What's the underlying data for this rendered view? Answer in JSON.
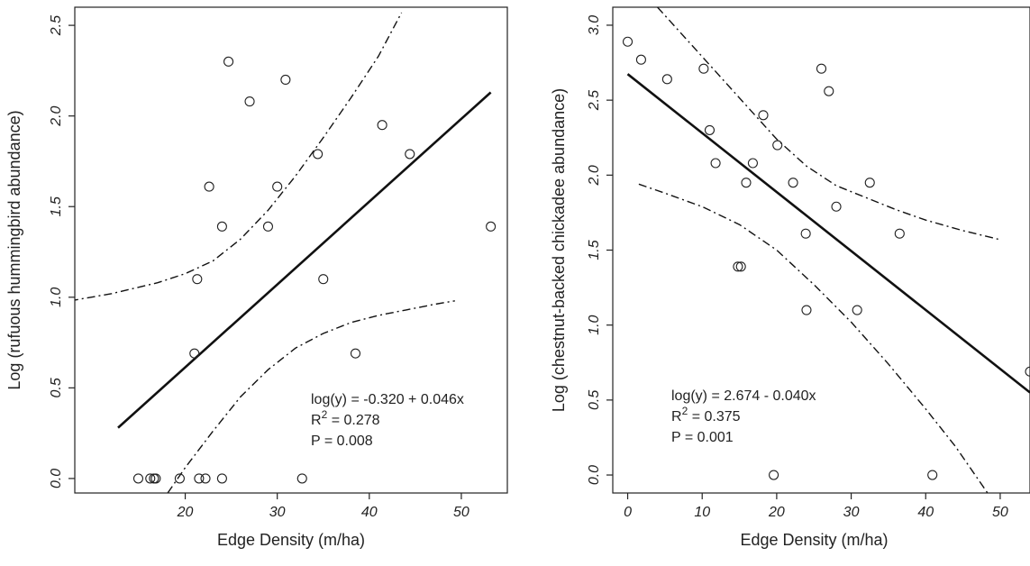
{
  "chart_data": [
    {
      "type": "scatter",
      "xlabel": "Edge Density (m/ha)",
      "ylabel": "Log (rufuous hummingbird abundance)",
      "xlim": [
        8,
        55
      ],
      "ylim": [
        -0.08,
        2.6
      ],
      "xticks": [
        "20",
        "30",
        "40",
        "50"
      ],
      "yticks": [
        "0.0",
        "0.5",
        "1.0",
        "1.5",
        "2.0",
        "2.5"
      ],
      "points": [
        {
          "x": 14.9,
          "y": 0.0
        },
        {
          "x": 16.2,
          "y": 0.0
        },
        {
          "x": 16.6,
          "y": 0.0
        },
        {
          "x": 16.8,
          "y": 0.0
        },
        {
          "x": 19.4,
          "y": 0.0
        },
        {
          "x": 21.5,
          "y": 0.0
        },
        {
          "x": 22.2,
          "y": 0.0
        },
        {
          "x": 24.0,
          "y": 0.0
        },
        {
          "x": 32.7,
          "y": 0.0
        },
        {
          "x": 21.0,
          "y": 0.69
        },
        {
          "x": 21.3,
          "y": 1.1
        },
        {
          "x": 22.6,
          "y": 1.61
        },
        {
          "x": 24.0,
          "y": 1.39
        },
        {
          "x": 24.7,
          "y": 2.3
        },
        {
          "x": 27.0,
          "y": 2.08
        },
        {
          "x": 29.0,
          "y": 1.39
        },
        {
          "x": 30.0,
          "y": 1.61
        },
        {
          "x": 30.9,
          "y": 2.2
        },
        {
          "x": 34.4,
          "y": 1.79
        },
        {
          "x": 35.0,
          "y": 1.1
        },
        {
          "x": 38.5,
          "y": 0.69
        },
        {
          "x": 41.4,
          "y": 1.95
        },
        {
          "x": 44.4,
          "y": 1.79
        },
        {
          "x": 53.2,
          "y": 1.39
        }
      ],
      "fit_line": [
        {
          "x": 12.7,
          "y": 0.28
        },
        {
          "x": 53.2,
          "y": 2.13
        }
      ],
      "upper_ci": [
        {
          "x": 7.5,
          "y": 0.98
        },
        {
          "x": 12,
          "y": 1.02
        },
        {
          "x": 17,
          "y": 1.08
        },
        {
          "x": 20,
          "y": 1.13
        },
        {
          "x": 23,
          "y": 1.2
        },
        {
          "x": 26,
          "y": 1.32
        },
        {
          "x": 29,
          "y": 1.48
        },
        {
          "x": 32,
          "y": 1.67
        },
        {
          "x": 35,
          "y": 1.88
        },
        {
          "x": 38,
          "y": 2.1
        },
        {
          "x": 41,
          "y": 2.33
        },
        {
          "x": 43.5,
          "y": 2.57
        }
      ],
      "lower_ci": [
        {
          "x": 18.1,
          "y": -0.08
        },
        {
          "x": 20,
          "y": 0.06
        },
        {
          "x": 23,
          "y": 0.26
        },
        {
          "x": 26,
          "y": 0.45
        },
        {
          "x": 29,
          "y": 0.6
        },
        {
          "x": 32,
          "y": 0.72
        },
        {
          "x": 35,
          "y": 0.8
        },
        {
          "x": 38,
          "y": 0.86
        },
        {
          "x": 41,
          "y": 0.9
        },
        {
          "x": 44,
          "y": 0.93
        },
        {
          "x": 47,
          "y": 0.96
        },
        {
          "x": 49.3,
          "y": 0.98
        }
      ],
      "annotation": {
        "equation": "log(y) = -0.320 + 0.046x",
        "r2_base": "R",
        "r2_sup": "2",
        "r2_rest": " = 0.278",
        "p": "P = 0.008"
      }
    },
    {
      "type": "scatter",
      "xlabel": "Edge Density (m/ha)",
      "ylabel": "Log (chestnut-backed chickadee abundance)",
      "xlim": [
        -2,
        54
      ],
      "ylim": [
        -0.12,
        3.12
      ],
      "xticks": [
        "0",
        "10",
        "20",
        "30",
        "40",
        "50"
      ],
      "yticks": [
        "0.0",
        "0.5",
        "1.0",
        "1.5",
        "2.0",
        "2.5",
        "3.0"
      ],
      "points": [
        {
          "x": 0.0,
          "y": 2.89
        },
        {
          "x": 1.8,
          "y": 2.77
        },
        {
          "x": 5.3,
          "y": 2.64
        },
        {
          "x": 10.2,
          "y": 2.71
        },
        {
          "x": 11.0,
          "y": 2.3
        },
        {
          "x": 11.8,
          "y": 2.08
        },
        {
          "x": 14.8,
          "y": 1.39
        },
        {
          "x": 15.2,
          "y": 1.39
        },
        {
          "x": 15.9,
          "y": 1.95
        },
        {
          "x": 16.8,
          "y": 2.08
        },
        {
          "x": 18.2,
          "y": 2.4
        },
        {
          "x": 19.6,
          "y": 0.0
        },
        {
          "x": 20.1,
          "y": 2.2
        },
        {
          "x": 22.2,
          "y": 1.95
        },
        {
          "x": 23.9,
          "y": 1.61
        },
        {
          "x": 24.0,
          "y": 1.1
        },
        {
          "x": 26.0,
          "y": 2.71
        },
        {
          "x": 27.0,
          "y": 2.56
        },
        {
          "x": 28.0,
          "y": 1.79
        },
        {
          "x": 30.8,
          "y": 1.1
        },
        {
          "x": 32.5,
          "y": 1.95
        },
        {
          "x": 36.5,
          "y": 1.61
        },
        {
          "x": 40.9,
          "y": 0.0
        },
        {
          "x": 54.0,
          "y": 0.69
        }
      ],
      "fit_line": [
        {
          "x": 0.0,
          "y": 2.674
        },
        {
          "x": 54.0,
          "y": 0.55
        }
      ],
      "upper_ci": [
        {
          "x": 4,
          "y": 3.12
        },
        {
          "x": 8,
          "y": 2.9
        },
        {
          "x": 12,
          "y": 2.68
        },
        {
          "x": 16,
          "y": 2.46
        },
        {
          "x": 20,
          "y": 2.24
        },
        {
          "x": 24,
          "y": 2.06
        },
        {
          "x": 28,
          "y": 1.93
        },
        {
          "x": 32,
          "y": 1.85
        },
        {
          "x": 36,
          "y": 1.77
        },
        {
          "x": 40,
          "y": 1.7
        },
        {
          "x": 45,
          "y": 1.63
        },
        {
          "x": 50,
          "y": 1.57
        }
      ],
      "lower_ci": [
        {
          "x": 1.5,
          "y": 1.94
        },
        {
          "x": 5,
          "y": 1.88
        },
        {
          "x": 10,
          "y": 1.79
        },
        {
          "x": 15,
          "y": 1.67
        },
        {
          "x": 20,
          "y": 1.5
        },
        {
          "x": 25,
          "y": 1.27
        },
        {
          "x": 30,
          "y": 1.02
        },
        {
          "x": 35,
          "y": 0.74
        },
        {
          "x": 40,
          "y": 0.44
        },
        {
          "x": 44,
          "y": 0.19
        },
        {
          "x": 48.3,
          "y": -0.12
        }
      ],
      "annotation": {
        "equation": "log(y) = 2.674 - 0.040x",
        "r2_base": "R",
        "r2_sup": "2",
        "r2_rest": " = 0.375",
        "p": "P = 0.001"
      }
    }
  ]
}
